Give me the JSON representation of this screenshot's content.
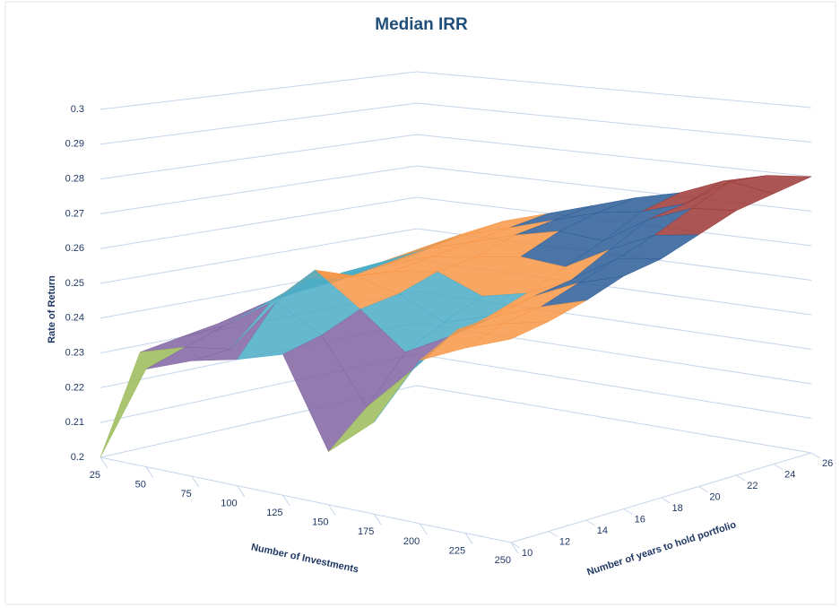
{
  "chart_data": {
    "type": "surface3d",
    "title": "Median IRR",
    "y_label": "Rate of Return",
    "x_label": "Number of Investments",
    "depth_label": "Number of years to hold portfolio",
    "categories": [
      "25",
      "50",
      "75",
      "100",
      "125",
      "150",
      "175",
      "200",
      "225",
      "250"
    ],
    "series": [
      {
        "name": "10",
        "values": [
          0.2,
          0.228,
          0.233,
          0.236,
          0.24,
          0.215,
          0.226,
          0.246,
          0.252,
          0.257
        ]
      },
      {
        "name": "12",
        "values": [
          0.228,
          0.232,
          0.234,
          0.25,
          0.243,
          0.225,
          0.238,
          0.252,
          0.256,
          0.259
        ]
      },
      {
        "name": "14",
        "values": [
          0.23,
          0.236,
          0.245,
          0.257,
          0.248,
          0.238,
          0.245,
          0.253,
          0.258,
          0.262
        ]
      },
      {
        "name": "16",
        "values": [
          0.232,
          0.24,
          0.25,
          0.253,
          0.25,
          0.244,
          0.248,
          0.256,
          0.262,
          0.266
        ]
      },
      {
        "name": "18",
        "values": [
          0.235,
          0.243,
          0.248,
          0.252,
          0.254,
          0.249,
          0.252,
          0.258,
          0.266,
          0.268
        ]
      },
      {
        "name": "20",
        "values": [
          0.237,
          0.245,
          0.25,
          0.254,
          0.256,
          0.258,
          0.257,
          0.264,
          0.27,
          0.272
        ]
      },
      {
        "name": "22",
        "values": [
          0.238,
          0.246,
          0.252,
          0.256,
          0.26,
          0.263,
          0.262,
          0.27,
          0.275,
          0.276
        ]
      },
      {
        "name": "24",
        "values": [
          0.24,
          0.248,
          0.254,
          0.258,
          0.262,
          0.266,
          0.268,
          0.272,
          0.28,
          0.278
        ]
      },
      {
        "name": "26",
        "values": [
          0.242,
          0.25,
          0.256,
          0.26,
          0.264,
          0.268,
          0.271,
          0.276,
          0.279,
          0.28
        ]
      }
    ],
    "ylim": [
      0.2,
      0.3
    ],
    "yticks": [
      0.2,
      0.21,
      0.22,
      0.23,
      0.24,
      0.25,
      0.26,
      0.27,
      0.28,
      0.29,
      0.3
    ],
    "band_colors": [
      "#4f81bd",
      "#c0504d",
      "#9bbb59",
      "#8064a2",
      "#4bacc6",
      "#f79646",
      "#2c5d98",
      "#9c3836",
      "#7a9a3a",
      "#5e4682"
    ],
    "grid": true
  }
}
